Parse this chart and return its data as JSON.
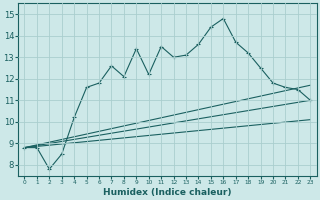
{
  "xlabel": "Humidex (Indice chaleur)",
  "ylabel": "",
  "bg_color": "#cde8e8",
  "grid_color": "#aacece",
  "line_color": "#1a6060",
  "xlim": [
    -0.5,
    23.5
  ],
  "ylim": [
    7.5,
    15.5
  ],
  "xticks": [
    0,
    1,
    2,
    3,
    4,
    5,
    6,
    7,
    8,
    9,
    10,
    11,
    12,
    13,
    14,
    15,
    16,
    17,
    18,
    19,
    20,
    21,
    22,
    23
  ],
  "yticks": [
    8,
    9,
    10,
    11,
    12,
    13,
    14,
    15
  ],
  "series1_x": [
    0,
    1,
    2,
    3,
    4,
    5,
    6,
    7,
    8,
    9,
    10,
    11,
    12,
    13,
    14,
    15,
    16,
    17,
    18,
    19,
    20,
    21,
    22,
    23
  ],
  "series1_y": [
    8.8,
    8.8,
    7.8,
    8.5,
    10.2,
    11.6,
    11.8,
    12.6,
    12.1,
    13.4,
    12.2,
    13.5,
    13.0,
    13.1,
    13.6,
    14.4,
    14.8,
    13.7,
    13.2,
    12.5,
    11.8,
    11.6,
    11.5,
    11.0
  ],
  "series2_x": [
    0,
    23
  ],
  "series2_y": [
    8.8,
    11.7
  ],
  "series3_x": [
    0,
    23
  ],
  "series3_y": [
    8.8,
    11.0
  ],
  "series4_x": [
    0,
    23
  ],
  "series4_y": [
    8.8,
    10.1
  ]
}
